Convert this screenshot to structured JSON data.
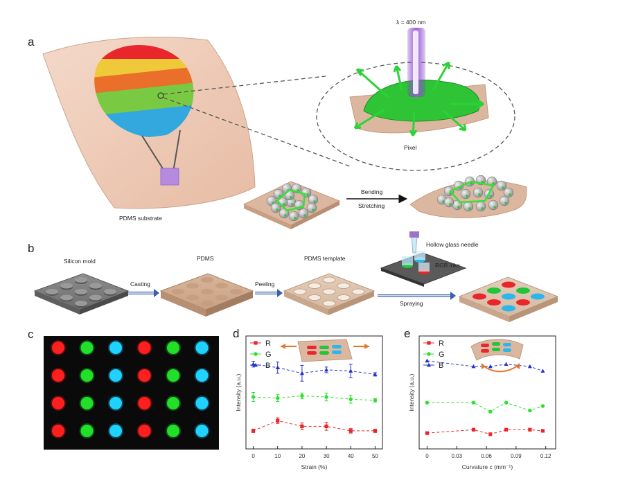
{
  "figure": {
    "panel_labels": [
      "a",
      "b",
      "c",
      "d",
      "e"
    ],
    "a": {
      "wavelength_label": "λ = 400 nm",
      "pixel_label": "Pixel",
      "substrate_label": "PDMS substrate",
      "bending_label": "Bending",
      "stretching_label": "Stretching"
    },
    "b": {
      "stages": [
        "Silicon mold",
        "PDMS",
        "PDMS template"
      ],
      "arrows": [
        "Casting",
        "Peeling",
        "Spraying"
      ],
      "needle_label": "Hollow glass needle",
      "inks_label": "RGB inks"
    },
    "c": {
      "grid_rows": 4,
      "grid_colors": [
        "#ff1f1f",
        "#22e02a",
        "#1fd2ff",
        "#ff1f1f",
        "#22e02a",
        "#1fd2ff"
      ]
    },
    "colors": {
      "R": "#e8262b",
      "G": "#2ee02b",
      "B": "#2433cc"
    }
  },
  "chart_data": [
    {
      "type": "line",
      "panel": "d",
      "xlabel": "Strain (%)",
      "ylabel": "Intensity (a.u.)",
      "xlim": [
        -3,
        53
      ],
      "ylim": [
        0,
        10
      ],
      "xticks": [
        0,
        10,
        20,
        30,
        40,
        50
      ],
      "xtick_labels": [
        "0",
        "10",
        "20",
        "30",
        "40",
        "50"
      ],
      "legend_position": "top-left",
      "series": [
        {
          "name": "R",
          "color": "#e8262b",
          "marker": "square",
          "x": [
            0,
            10,
            20,
            30,
            40,
            50
          ],
          "y": [
            1.6,
            2.5,
            2.0,
            2.0,
            1.6,
            1.6
          ],
          "err": [
            0.15,
            0.25,
            0.3,
            0.35,
            0.2,
            0.15
          ]
        },
        {
          "name": "G",
          "color": "#2ee02b",
          "marker": "circle",
          "x": [
            0,
            10,
            20,
            30,
            40,
            50
          ],
          "y": [
            4.6,
            4.5,
            4.7,
            4.6,
            4.4,
            4.3
          ],
          "err": [
            0.4,
            0.3,
            0.25,
            0.35,
            0.35,
            0.15
          ]
        },
        {
          "name": "B",
          "color": "#2433cc",
          "marker": "triangle",
          "x": [
            0,
            10,
            20,
            30,
            40,
            50
          ],
          "y": [
            7.5,
            7.2,
            6.7,
            7.0,
            6.9,
            6.6
          ],
          "err": [
            0.25,
            0.5,
            0.7,
            0.25,
            0.6,
            0.15
          ]
        }
      ]
    },
    {
      "type": "line",
      "panel": "e",
      "xlabel": "Curvature c (mm⁻¹)",
      "ylabel": "Intensity (a.u.)",
      "xlim": [
        -0.008,
        0.13
      ],
      "ylim": [
        0,
        10
      ],
      "xticks": [
        0,
        0.03,
        0.06,
        0.09,
        0.12
      ],
      "xtick_labels": [
        "0",
        "0.03",
        "0.06",
        "0.09",
        "0.12"
      ],
      "legend_position": "top-left",
      "series": [
        {
          "name": "R",
          "color": "#e8262b",
          "marker": "square",
          "x": [
            0,
            0.047,
            0.064,
            0.08,
            0.104,
            0.117
          ],
          "y": [
            1.4,
            1.7,
            1.3,
            1.7,
            1.7,
            1.6
          ]
        },
        {
          "name": "G",
          "color": "#2ee02b",
          "marker": "circle",
          "x": [
            0,
            0.047,
            0.064,
            0.08,
            0.104,
            0.117
          ],
          "y": [
            4.1,
            4.1,
            3.3,
            4.1,
            3.4,
            3.8
          ]
        },
        {
          "name": "B",
          "color": "#2433cc",
          "marker": "triangle",
          "x": [
            0,
            0.047,
            0.064,
            0.08,
            0.104,
            0.117
          ],
          "y": [
            7.8,
            7.3,
            7.3,
            7.5,
            7.3,
            6.9
          ]
        }
      ]
    }
  ]
}
